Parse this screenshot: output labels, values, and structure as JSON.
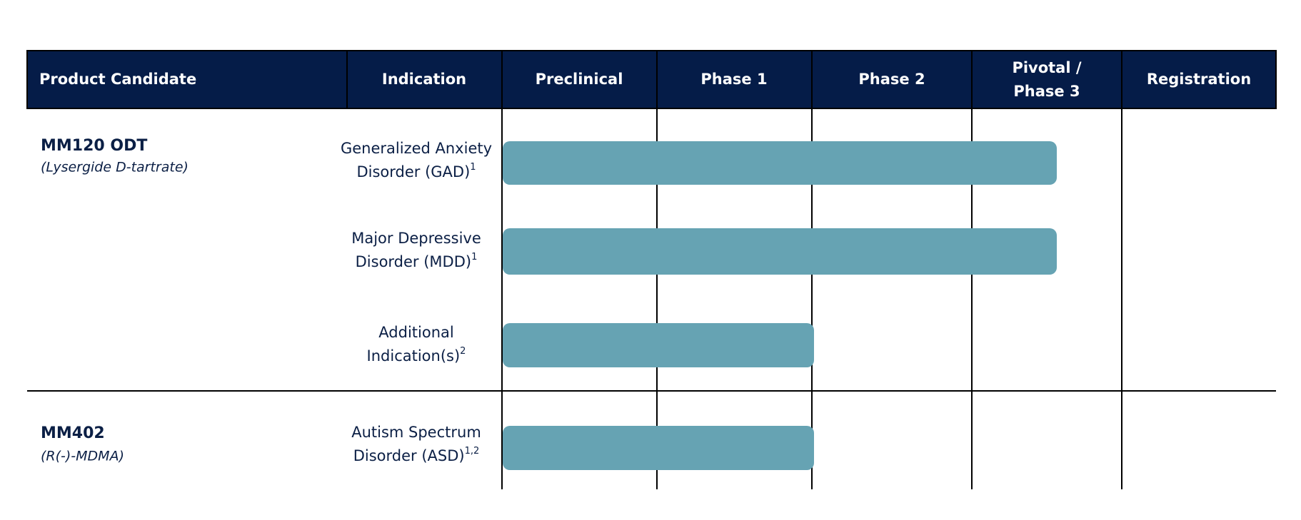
{
  "header": {
    "columns": [
      "Product Candidate",
      "Indication",
      "Preclinical",
      "Phase 1",
      "Phase 2",
      [
        "Pivotal /",
        "Phase 3"
      ],
      "Registration"
    ]
  },
  "products": [
    {
      "name": "MM120 ODT",
      "compound": "(Lysergide D-tartrate)",
      "indications": [
        {
          "lines": [
            "Generalized Anxiety",
            "Disorder (GAD)"
          ],
          "note": "1"
        },
        {
          "lines": [
            "Major Depressive",
            "Disorder (MDD)"
          ],
          "note": "1"
        },
        {
          "lines": [
            "Additional",
            "Indication(s)"
          ],
          "note": "2"
        }
      ]
    },
    {
      "name": "MM402",
      "compound": "(R(-)-MDMA)",
      "indications": [
        {
          "lines": [
            "Autism Spectrum",
            "Disorder (ASD)"
          ],
          "note": "1,2"
        }
      ]
    }
  ]
}
